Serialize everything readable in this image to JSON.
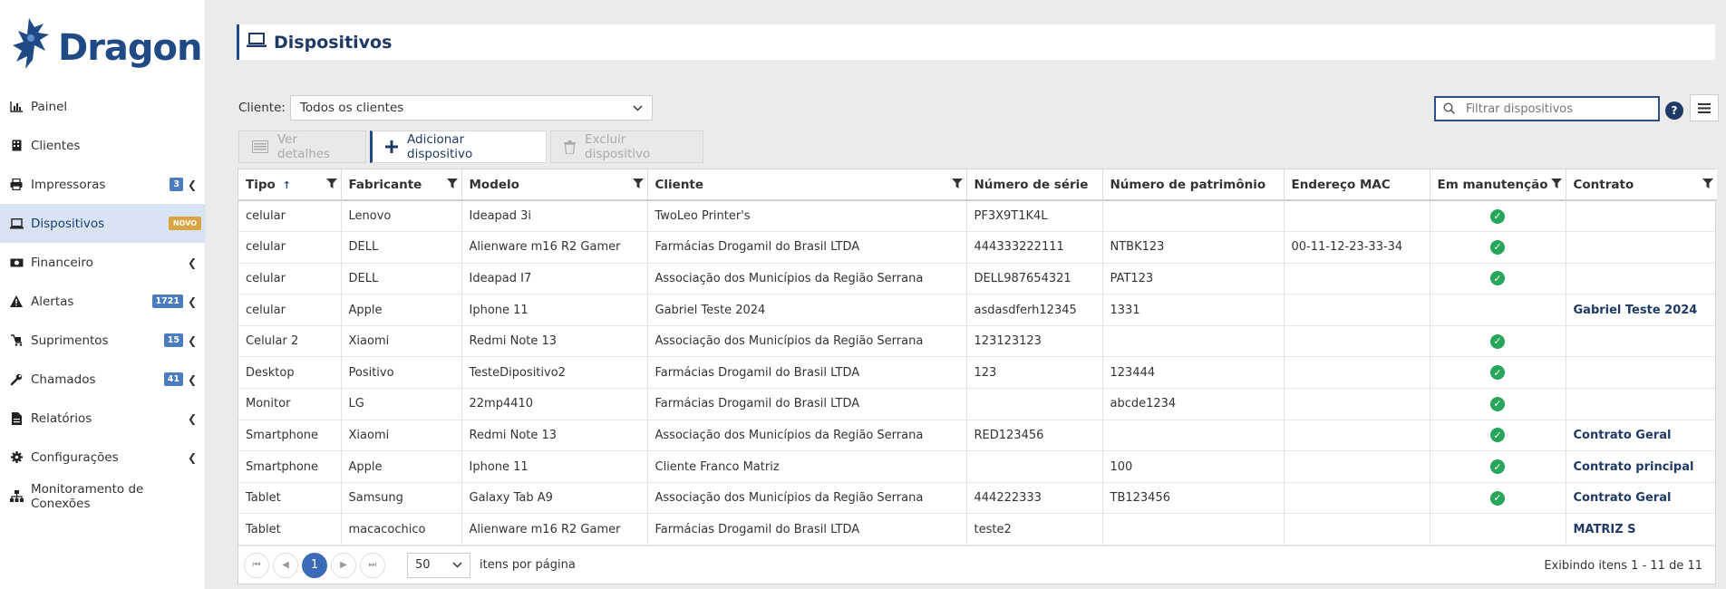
{
  "brand": {
    "name": "Dragon"
  },
  "sidebar": {
    "items": [
      {
        "label": "Painel",
        "icon": "chart-icon",
        "badge": "",
        "chevron": false
      },
      {
        "label": "Clientes",
        "icon": "building-icon",
        "badge": "",
        "chevron": false
      },
      {
        "label": "Impressoras",
        "icon": "printer-icon",
        "badge": "3",
        "chevron": true
      },
      {
        "label": "Dispositivos",
        "icon": "laptop-icon",
        "badge": "NOVO",
        "chevron": false,
        "active": true
      },
      {
        "label": "Financeiro",
        "icon": "money-icon",
        "badge": "",
        "chevron": true
      },
      {
        "label": "Alertas",
        "icon": "warning-icon",
        "badge": "1721",
        "chevron": true
      },
      {
        "label": "Suprimentos",
        "icon": "supplies-icon",
        "badge": "15",
        "chevron": true
      },
      {
        "label": "Chamados",
        "icon": "wrench-icon",
        "badge": "41",
        "chevron": true
      },
      {
        "label": "Relatórios",
        "icon": "report-icon",
        "badge": "",
        "chevron": true
      },
      {
        "label": "Configurações",
        "icon": "gear-icon",
        "badge": "",
        "chevron": true
      },
      {
        "label": "Monitoramento de Conexões",
        "icon": "network-icon",
        "badge": "",
        "chevron": false
      }
    ]
  },
  "page": {
    "title": "Dispositivos"
  },
  "filter": {
    "label": "Cliente:",
    "value": "Todos os clientes"
  },
  "search": {
    "placeholder": "Filtrar dispositivos"
  },
  "toolbar": {
    "details": "Ver detalhes",
    "add": "Adicionar dispositivo",
    "delete": "Excluir dispositivo"
  },
  "table": {
    "columns": [
      "Tipo",
      "Fabricante",
      "Modelo",
      "Cliente",
      "Número de série",
      "Número de patrimônio",
      "Endereço MAC",
      "Em manutenção",
      "Contrato"
    ],
    "rows": [
      {
        "tipo": "celular",
        "fabricante": "Lenovo",
        "modelo": "Ideapad 3i",
        "cliente": "TwoLeo Printer's",
        "serie": "PF3X9T1K4L",
        "patrimonio": "",
        "mac": "",
        "manutencao": true,
        "contrato": ""
      },
      {
        "tipo": "celular",
        "fabricante": "DELL",
        "modelo": "Alienware m16 R2 Gamer",
        "cliente": "Farmácias Drogamil do Brasil LTDA",
        "serie": "444333222111",
        "patrimonio": "NTBK123",
        "mac": "00-11-12-23-33-34",
        "manutencao": true,
        "contrato": ""
      },
      {
        "tipo": "celular",
        "fabricante": "DELL",
        "modelo": "Ideapad I7",
        "cliente": "Associação dos Municípios da Região Serrana",
        "serie": "DELL987654321",
        "patrimonio": "PAT123",
        "mac": "",
        "manutencao": true,
        "contrato": ""
      },
      {
        "tipo": "celular",
        "fabricante": "Apple",
        "modelo": "Iphone 11",
        "cliente": "Gabriel Teste 2024",
        "serie": "asdasdferh12345",
        "patrimonio": "1331",
        "mac": "",
        "manutencao": false,
        "contrato": "Gabriel Teste 2024"
      },
      {
        "tipo": "Celular 2",
        "fabricante": "Xiaomi",
        "modelo": "Redmi Note 13",
        "cliente": "Associação dos Municípios da Região Serrana",
        "serie": "123123123",
        "patrimonio": "",
        "mac": "",
        "manutencao": true,
        "contrato": ""
      },
      {
        "tipo": "Desktop",
        "fabricante": "Positivo",
        "modelo": "TesteDipositivo2",
        "cliente": "Farmácias Drogamil do Brasil LTDA",
        "serie": "123",
        "patrimonio": "123444",
        "mac": "",
        "manutencao": true,
        "contrato": ""
      },
      {
        "tipo": "Monitor",
        "fabricante": "LG",
        "modelo": "22mp4410",
        "cliente": "Farmácias Drogamil do Brasil LTDA",
        "serie": "",
        "patrimonio": "abcde1234",
        "mac": "",
        "manutencao": true,
        "contrato": ""
      },
      {
        "tipo": "Smartphone",
        "fabricante": "Xiaomi",
        "modelo": "Redmi Note 13",
        "cliente": "Associação dos Municípios da Região Serrana",
        "serie": "RED123456",
        "patrimonio": "",
        "mac": "",
        "manutencao": true,
        "contrato": "Contrato Geral"
      },
      {
        "tipo": "Smartphone",
        "fabricante": "Apple",
        "modelo": "Iphone 11",
        "cliente": "Cliente Franco Matriz",
        "serie": "",
        "patrimonio": "100",
        "mac": "",
        "manutencao": true,
        "contrato": "Contrato principal"
      },
      {
        "tipo": "Tablet",
        "fabricante": "Samsung",
        "modelo": "Galaxy Tab A9",
        "cliente": "Associação dos Municípios da Região Serrana",
        "serie": "444222333",
        "patrimonio": "TB123456",
        "mac": "",
        "manutencao": true,
        "contrato": "Contrato Geral"
      },
      {
        "tipo": "Tablet",
        "fabricante": "macacochico",
        "modelo": "Alienware m16 R2 Gamer",
        "cliente": "Farmácias Drogamil do Brasil LTDA",
        "serie": "teste2",
        "patrimonio": "",
        "mac": "",
        "manutencao": false,
        "contrato": "MATRIZ S"
      }
    ]
  },
  "pager": {
    "current_page": "1",
    "page_size": "50",
    "page_size_label": "itens por página",
    "info": "Exibindo itens 1 - 11 de 11"
  },
  "colors": {
    "brand": "#1f4a85",
    "active_bg": "#d8e3f3",
    "check": "#27a55a",
    "badge": "#4b7cc0",
    "badge_new": "#d9a441"
  }
}
